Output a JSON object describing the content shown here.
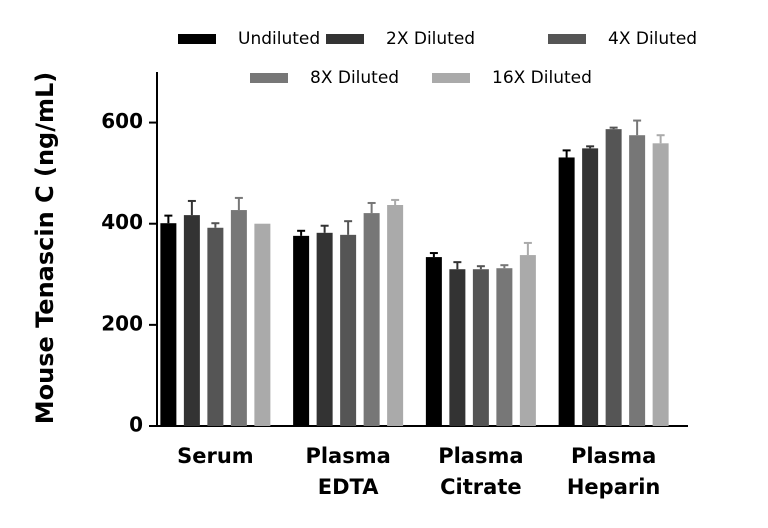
{
  "chart_data": {
    "type": "bar",
    "y_label": "Mouse Tenascin C (ng/mL)",
    "categories": [
      "Serum",
      "Plasma EDTA",
      "Plasma Citrate",
      "Plasma Heparin"
    ],
    "series": [
      {
        "name": "Undiluted",
        "color": "#000000",
        "values": [
          401,
          376,
          334,
          531
        ],
        "errors": [
          15,
          10,
          8,
          14
        ]
      },
      {
        "name": "2X Diluted",
        "color": "#333333",
        "values": [
          417,
          382,
          310,
          549
        ],
        "errors": [
          28,
          14,
          14,
          4
        ]
      },
      {
        "name": "4X Diluted",
        "color": "#555555",
        "values": [
          392,
          378,
          310,
          587
        ],
        "errors": [
          9,
          27,
          6,
          3
        ]
      },
      {
        "name": "8X Diluted",
        "color": "#777777",
        "values": [
          427,
          421,
          312,
          575
        ],
        "errors": [
          24,
          20,
          6,
          29
        ]
      },
      {
        "name": "16X Diluted",
        "color": "#aaaaaa",
        "values": [
          400,
          437,
          338,
          559
        ],
        "errors": [
          0,
          10,
          24,
          16
        ]
      }
    ],
    "ylim": [
      0,
      700
    ],
    "yticks": [
      0,
      200,
      400,
      600
    ]
  }
}
